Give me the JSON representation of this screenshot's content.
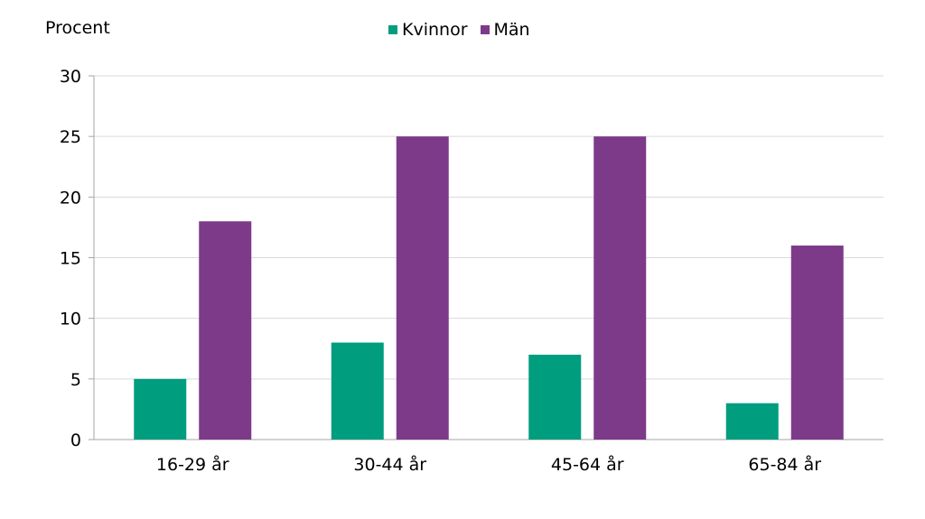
{
  "chart_data": {
    "type": "bar",
    "title": "",
    "xlabel": "",
    "ylabel": "Procent",
    "categories": [
      "16-29 år",
      "30-44 år",
      "45-64 år",
      "65-84 år"
    ],
    "series": [
      {
        "name": "Kvinnor",
        "values": [
          5,
          8,
          7,
          3
        ],
        "color": "#009e7e"
      },
      {
        "name": "Män",
        "values": [
          18,
          25,
          25,
          16
        ],
        "color": "#7d3a89"
      }
    ],
    "ylim": [
      0,
      30
    ],
    "yticks": [
      0,
      5,
      10,
      15,
      20,
      25,
      30
    ],
    "grid": true,
    "legend_position": "top-center"
  }
}
